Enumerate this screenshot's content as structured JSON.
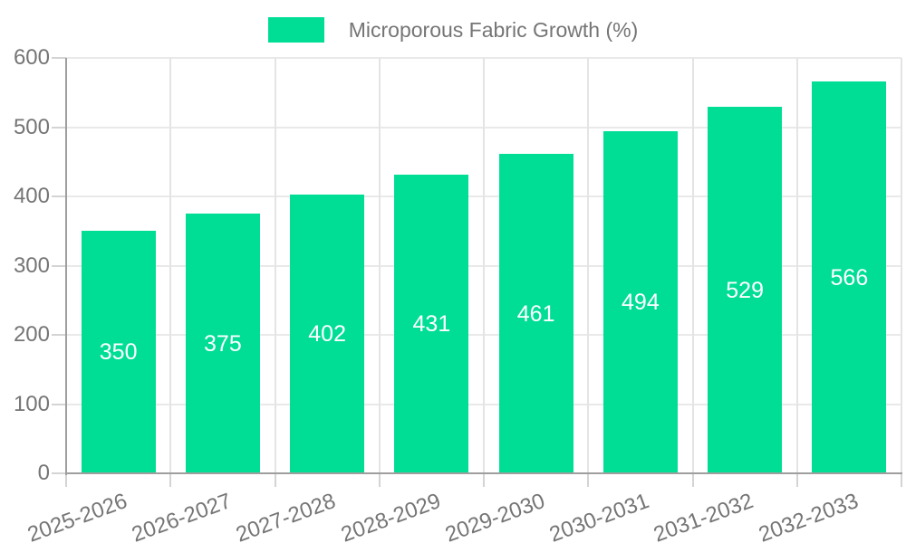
{
  "page": {
    "background": "#ffffff"
  },
  "legend": {
    "label": "Microporous Fabric Growth (%)",
    "swatch_color": "#00DE96"
  },
  "chart_data": {
    "type": "bar",
    "title": "",
    "categories": [
      "2025-2026",
      "2026-2027",
      "2027-2028",
      "2028-2029",
      "2029-2030",
      "2030-2031",
      "2031-2032",
      "2032-2033"
    ],
    "series": [
      {
        "name": "Microporous Fabric Growth (%)",
        "values": [
          350,
          375,
          402,
          431,
          461,
          494,
          529,
          566
        ]
      }
    ],
    "value_labels": [
      "350",
      "375",
      "402",
      "431",
      "461",
      "494",
      "529",
      "566"
    ],
    "xlabel": "",
    "ylabel": "",
    "ylim": [
      0,
      600
    ],
    "y_ticks": [
      "0",
      "100",
      "200",
      "300",
      "400",
      "500",
      "600"
    ],
    "grid": true,
    "legend_position": "top-center",
    "bar_color": "#00DE96",
    "value_label_color": "#ffffff",
    "value_label_position": "inside-center",
    "axis_text_color": "#757575",
    "grid_color": "#e9e9e9",
    "axis_line_color": "#9e9e9e",
    "x_tick_rotation_deg": -20
  }
}
